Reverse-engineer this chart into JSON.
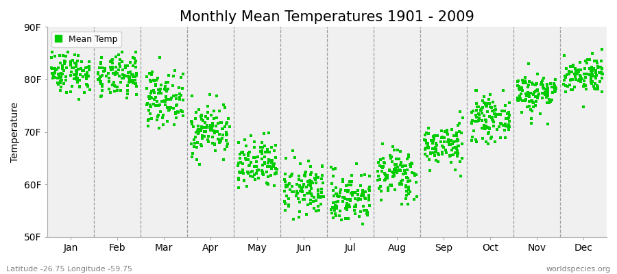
{
  "title": "Monthly Mean Temperatures 1901 - 2009",
  "ylabel": "Temperature",
  "xlabel_bottom": "Latitude -26.75 Longitude -59.75",
  "watermark": "worldspecies.org",
  "ylim": [
    50,
    90
  ],
  "yticks": [
    50,
    60,
    70,
    80,
    90
  ],
  "ytick_labels": [
    "50F",
    "60F",
    "70F",
    "80F",
    "90F"
  ],
  "month_labels": [
    "Jan",
    "Feb",
    "Mar",
    "Apr",
    "May",
    "Jun",
    "Jul",
    "Aug",
    "Sep",
    "Oct",
    "Nov",
    "Dec"
  ],
  "dot_color": "#00CC00",
  "dot_size": 8,
  "background_color": "#ffffff",
  "plot_bg_color": "#f0f0f0",
  "legend_label": "Mean Temp",
  "title_fontsize": 15,
  "label_fontsize": 10,
  "tick_fontsize": 10,
  "monthly_means": [
    81.5,
    80.5,
    76.5,
    70.5,
    63.5,
    59.0,
    57.5,
    62.0,
    67.5,
    72.5,
    77.5,
    81.0
  ],
  "monthly_stds": [
    2.0,
    2.0,
    2.5,
    2.5,
    2.5,
    2.5,
    2.5,
    2.5,
    2.0,
    2.0,
    2.0,
    1.8
  ],
  "n_years": 109,
  "seed": 42
}
